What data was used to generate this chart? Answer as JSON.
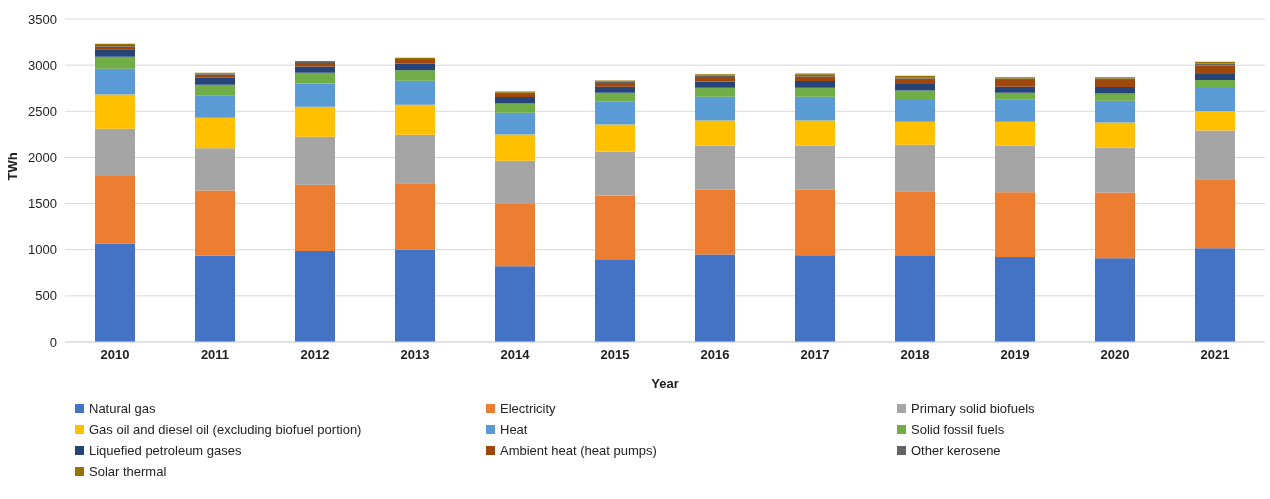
{
  "chart_data": {
    "type": "bar",
    "stacked": true,
    "xlabel": "Year",
    "ylabel": "TWh",
    "categories": [
      "2010",
      "2011",
      "2012",
      "2013",
      "2014",
      "2015",
      "2016",
      "2017",
      "2018",
      "2019",
      "2020",
      "2021"
    ],
    "ylim": [
      0,
      3500
    ],
    "yticks": [
      0,
      500,
      1000,
      1500,
      2000,
      2500,
      3000,
      3500
    ],
    "grid": "y",
    "legend": "bottom",
    "series": [
      {
        "name": "Natural gas",
        "color": "#4472c4",
        "values": [
          1066,
          936,
          987,
          1001,
          821,
          889,
          947,
          940,
          933,
          922,
          907,
          1016
        ]
      },
      {
        "name": "Electricity",
        "color": "#ed7d31",
        "values": [
          734,
          705,
          716,
          720,
          683,
          695,
          705,
          712,
          701,
          701,
          713,
          748
        ]
      },
      {
        "name": "Primary solid biofuels",
        "color": "#a5a5a5",
        "values": [
          510,
          459,
          520,
          524,
          459,
          477,
          474,
          477,
          503,
          506,
          484,
          528
        ]
      },
      {
        "name": "Gas oil and diesel oil (excluding biofuel portion)",
        "color": "#ffc000",
        "values": [
          373,
          330,
          326,
          326,
          286,
          296,
          275,
          272,
          249,
          257,
          275,
          210
        ]
      },
      {
        "name": "Heat",
        "color": "#5b9bd5",
        "values": [
          278,
          245,
          253,
          260,
          235,
          246,
          256,
          256,
          246,
          239,
          235,
          260
        ]
      },
      {
        "name": "Solid fossil fuels",
        "color": "#70ad47",
        "values": [
          130,
          112,
          115,
          115,
          101,
          98,
          98,
          98,
          94,
          76,
          80,
          76
        ]
      },
      {
        "name": "Liquefied petroleum gases",
        "color": "#264478",
        "values": [
          80,
          76,
          69,
          73,
          69,
          65,
          69,
          72,
          69,
          65,
          68,
          65
        ]
      },
      {
        "name": "Ambient heat (heat pumps)",
        "color": "#9e480e",
        "values": [
          32,
          33,
          36,
          36,
          33,
          40,
          47,
          51,
          61,
          72,
          76,
          94
        ]
      },
      {
        "name": "Other kerosene",
        "color": "#636363",
        "values": [
          15,
          11,
          11,
          11,
          14,
          14,
          14,
          18,
          14,
          18,
          18,
          22
        ]
      },
      {
        "name": "Solar thermal",
        "color": "#997300",
        "values": [
          14,
          11,
          11,
          14,
          14,
          14,
          15,
          14,
          15,
          14,
          14,
          18
        ]
      }
    ]
  }
}
